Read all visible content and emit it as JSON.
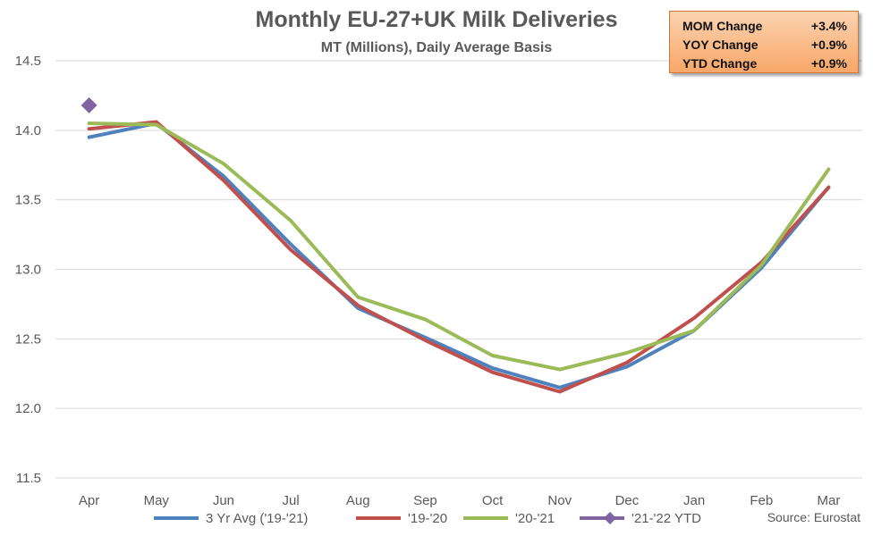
{
  "chart_data": {
    "type": "line",
    "title": "Monthly EU-27+UK Milk Deliveries",
    "subtitle": "MT (Millions), Daily Average Basis",
    "categories": [
      "Apr",
      "May",
      "Jun",
      "Jul",
      "Aug",
      "Sep",
      "Oct",
      "Nov",
      "Dec",
      "Jan",
      "Feb",
      "Mar"
    ],
    "ylim": [
      11.5,
      14.5
    ],
    "yticks": [
      "11.5",
      "12.0",
      "12.5",
      "13.0",
      "13.5",
      "14.0",
      "14.5"
    ],
    "grid": true,
    "legend_position": "bottom",
    "series": [
      {
        "name": "3 Yr Avg ('19-'21)",
        "color": "#4f81bd",
        "values": [
          13.95,
          14.05,
          13.67,
          13.18,
          12.72,
          12.51,
          12.29,
          12.15,
          12.3,
          12.56,
          13.01,
          13.59
        ]
      },
      {
        "name": "'19-'20",
        "color": "#c0504d",
        "values": [
          14.01,
          14.06,
          13.64,
          13.14,
          12.74,
          12.49,
          12.26,
          12.12,
          12.33,
          12.65,
          13.05,
          13.59
        ]
      },
      {
        "name": "'20-'21",
        "color": "#9bbb59",
        "values": [
          14.05,
          14.04,
          13.76,
          13.35,
          12.8,
          12.64,
          12.38,
          12.28,
          12.4,
          12.56,
          13.03,
          13.72
        ]
      },
      {
        "name": "'21-'22 YTD",
        "color": "#8064a2",
        "marker": "diamond",
        "values": [
          14.18,
          null,
          null,
          null,
          null,
          null,
          null,
          null,
          null,
          null,
          null,
          null
        ]
      }
    ],
    "source": "Source: Eurostat"
  },
  "stats": [
    {
      "label": "MOM Change",
      "value": "+3.4%"
    },
    {
      "label": "YOY Change",
      "value": "+0.9%"
    },
    {
      "label": "YTD Change",
      "value": "+0.9%"
    }
  ]
}
